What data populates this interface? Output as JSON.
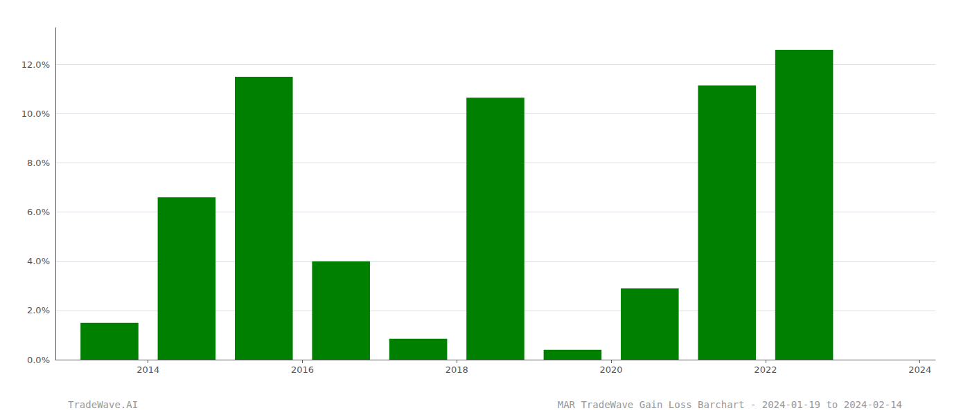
{
  "chart_data": {
    "type": "bar",
    "x": [
      2014,
      2015,
      2016,
      2017,
      2018,
      2019,
      2020,
      2021,
      2022,
      2023
    ],
    "values": [
      0.015,
      0.066,
      0.115,
      0.04,
      0.0085,
      0.1065,
      0.004,
      0.029,
      0.1115,
      0.126
    ],
    "color": "#008000",
    "xlim": [
      2013.3,
      2024.7
    ],
    "xticks": [
      {
        "value": 2014.5,
        "label": "2014"
      },
      {
        "value": 2016.5,
        "label": "2016"
      },
      {
        "value": 2018.5,
        "label": "2018"
      },
      {
        "value": 2020.5,
        "label": "2020"
      },
      {
        "value": 2022.5,
        "label": "2022"
      },
      {
        "value": 2024.5,
        "label": "2024"
      }
    ],
    "ylim": [
      0,
      0.135
    ],
    "yticks": [
      {
        "value": 0.0,
        "label": "0.0%"
      },
      {
        "value": 0.02,
        "label": "2.0%"
      },
      {
        "value": 0.04,
        "label": "4.0%"
      },
      {
        "value": 0.06,
        "label": "6.0%"
      },
      {
        "value": 0.08,
        "label": "8.0%"
      },
      {
        "value": 0.1,
        "label": "10.0%"
      },
      {
        "value": 0.12,
        "label": "12.0%"
      }
    ],
    "grid": true,
    "annotations": [
      "TradeWave.AI",
      "MAR TradeWave Gain Loss Barchart - 2024-01-19 to 2024-02-14"
    ]
  }
}
